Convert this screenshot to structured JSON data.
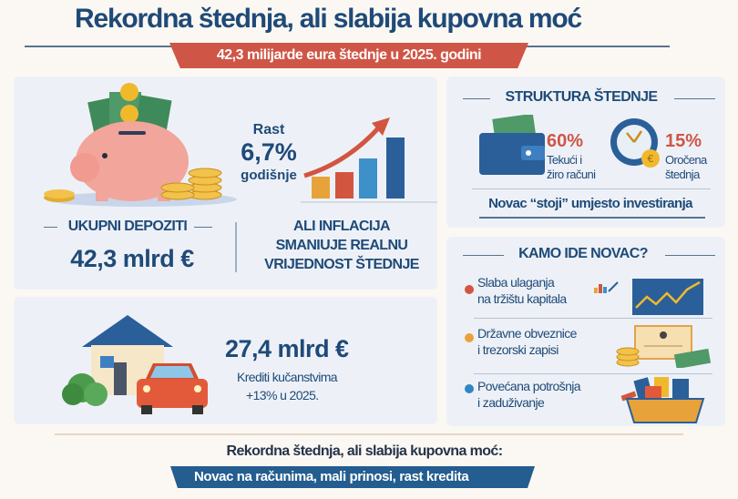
{
  "header": {
    "title": "Rekordna štednja, ali slabija kupovna moć",
    "subtitle": "42,3 milijarde eura štednje u 2025. godini"
  },
  "deposits": {
    "growth_label": "Rast",
    "growth_value": "6,7%",
    "growth_period": "godišnje",
    "label": "UKUPNI DEPOZITI",
    "value": "42,3 mlrd €",
    "inflation_line1": "ALI INFLACIJA",
    "inflation_line2": "SMANIUJE REALNU",
    "inflation_line3": "VRIJEDNOST ŠTEDNJE"
  },
  "loans": {
    "value": "27,4 mlrd €",
    "label": "Krediti kučanstvima",
    "change": "+13% u 2025."
  },
  "structure": {
    "title": "STRUKTURA ŠTEDNJE",
    "items": [
      {
        "percent": "60%",
        "line1": "Tekući i",
        "line2": "žiro računi",
        "icon": "wallet-icon"
      },
      {
        "percent": "15%",
        "line1": "Oročena",
        "line2": "štednja",
        "icon": "clock-euro-icon"
      }
    ],
    "note": "Novac “stoji” umjesto investiranja"
  },
  "where": {
    "title": "KAMO IDE NOVAC?",
    "items": [
      {
        "line1": "Slaba ulaganja",
        "line2": "na tržištu kapitala",
        "color": "#d2553f",
        "icon": "stock-chart-icon"
      },
      {
        "line1": "Državne obveznice",
        "line2": "i trezorski zapisi",
        "color": "#e8a23a",
        "icon": "bond-certificate-icon"
      },
      {
        "line1": "Povećana potrošnja",
        "line2": "i zaduživanje",
        "color": "#2f86c2",
        "icon": "shopping-basket-icon"
      }
    ]
  },
  "footer": {
    "line1": "Rekordna štednja, ali slabija kupovna moć:",
    "line2": "Novac na računima, mali prinosi, rast kredita"
  },
  "colors": {
    "primary": "#1f4a78",
    "accent_red": "#cf5646",
    "accent_blue": "#245d8f"
  }
}
